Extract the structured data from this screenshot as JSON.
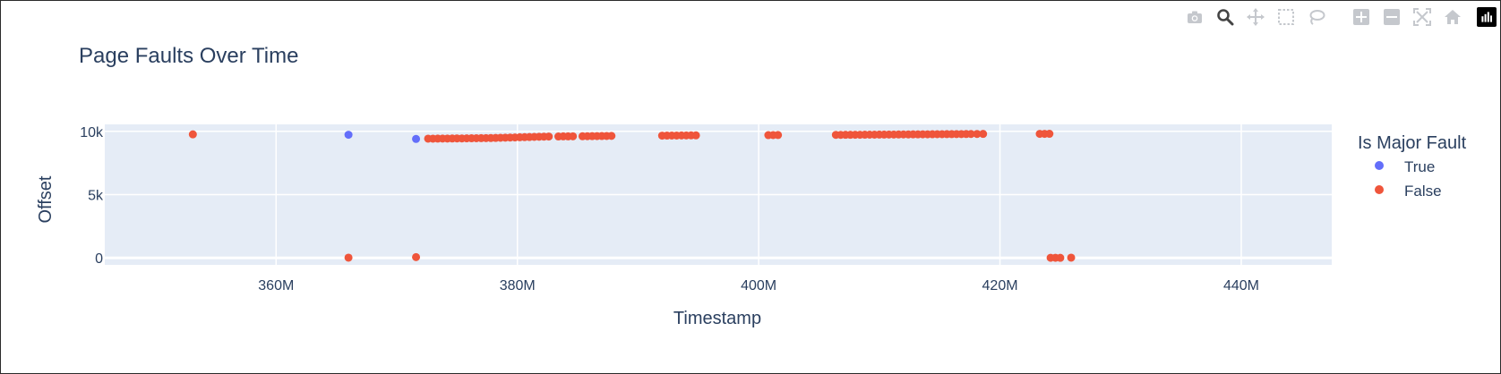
{
  "modebar": {
    "icons": [
      "camera-icon",
      "zoom-icon",
      "pan-icon",
      "box-select-icon",
      "lasso-select-icon",
      "zoom-in-icon",
      "zoom-out-icon",
      "autoscale-icon",
      "reset-axes-icon",
      "plotly-logo-icon"
    ]
  },
  "colors": {
    "true_series": "#636efa",
    "false_series": "#ef553b",
    "plot_bg": "#e5ecf6",
    "text": "#2a3f5f"
  },
  "chart_data": {
    "type": "scatter",
    "title": "Page Faults Over Time",
    "xlabel": "Timestamp",
    "ylabel": "Offset",
    "xlim": [
      345800000,
      447500000
    ],
    "ylim": [
      -550,
      10550
    ],
    "x_ticks": [
      {
        "value": 360000000,
        "label": "360M"
      },
      {
        "value": 380000000,
        "label": "380M"
      },
      {
        "value": 400000000,
        "label": "400M"
      },
      {
        "value": 420000000,
        "label": "420M"
      },
      {
        "value": 440000000,
        "label": "440M"
      }
    ],
    "y_ticks": [
      {
        "value": 0,
        "label": "0"
      },
      {
        "value": 5000,
        "label": "5k"
      },
      {
        "value": 10000,
        "label": "10k"
      }
    ],
    "grid": true,
    "legend": {
      "title": "Is Major Fault",
      "placement": "right",
      "entries": [
        "True",
        "False"
      ]
    },
    "series": [
      {
        "name": "True",
        "points": [
          [
            366000000,
            9730
          ],
          [
            371600000,
            9400
          ]
        ]
      },
      {
        "name": "False",
        "points": [
          [
            353100000,
            9760
          ],
          [
            366000000,
            20
          ],
          [
            371600000,
            60
          ],
          [
            372600000,
            9420
          ],
          [
            373000000,
            9420
          ],
          [
            373400000,
            9425
          ],
          [
            373800000,
            9430
          ],
          [
            374200000,
            9430
          ],
          [
            374600000,
            9435
          ],
          [
            375000000,
            9440
          ],
          [
            375400000,
            9440
          ],
          [
            375800000,
            9445
          ],
          [
            376200000,
            9450
          ],
          [
            376600000,
            9455
          ],
          [
            377000000,
            9460
          ],
          [
            377400000,
            9465
          ],
          [
            377800000,
            9470
          ],
          [
            378200000,
            9480
          ],
          [
            378600000,
            9490
          ],
          [
            379000000,
            9500
          ],
          [
            379400000,
            9510
          ],
          [
            379800000,
            9520
          ],
          [
            380200000,
            9530
          ],
          [
            380600000,
            9540
          ],
          [
            381000000,
            9550
          ],
          [
            381400000,
            9560
          ],
          [
            381800000,
            9570
          ],
          [
            382200000,
            9580
          ],
          [
            382600000,
            9590
          ],
          [
            383400000,
            9595
          ],
          [
            383800000,
            9600
          ],
          [
            384200000,
            9600
          ],
          [
            384600000,
            9605
          ],
          [
            385400000,
            9610
          ],
          [
            385800000,
            9615
          ],
          [
            386200000,
            9620
          ],
          [
            386600000,
            9625
          ],
          [
            387000000,
            9630
          ],
          [
            387400000,
            9635
          ],
          [
            387800000,
            9640
          ],
          [
            392000000,
            9660
          ],
          [
            392400000,
            9665
          ],
          [
            392800000,
            9670
          ],
          [
            393200000,
            9670
          ],
          [
            393600000,
            9675
          ],
          [
            394000000,
            9675
          ],
          [
            394400000,
            9680
          ],
          [
            394800000,
            9680
          ],
          [
            400800000,
            9700
          ],
          [
            401200000,
            9705
          ],
          [
            401600000,
            9710
          ],
          [
            406400000,
            9720
          ],
          [
            406800000,
            9722
          ],
          [
            407200000,
            9725
          ],
          [
            407600000,
            9727
          ],
          [
            408000000,
            9730
          ],
          [
            408400000,
            9732
          ],
          [
            408800000,
            9735
          ],
          [
            409200000,
            9737
          ],
          [
            409600000,
            9740
          ],
          [
            410000000,
            9742
          ],
          [
            410400000,
            9745
          ],
          [
            410800000,
            9747
          ],
          [
            411200000,
            9750
          ],
          [
            411600000,
            9752
          ],
          [
            412000000,
            9755
          ],
          [
            412400000,
            9757
          ],
          [
            412800000,
            9760
          ],
          [
            413200000,
            9762
          ],
          [
            413600000,
            9765
          ],
          [
            414000000,
            9767
          ],
          [
            414400000,
            9770
          ],
          [
            414800000,
            9772
          ],
          [
            415200000,
            9775
          ],
          [
            415600000,
            9777
          ],
          [
            416000000,
            9780
          ],
          [
            416400000,
            9782
          ],
          [
            416800000,
            9785
          ],
          [
            417200000,
            9787
          ],
          [
            417600000,
            9790
          ],
          [
            418100000,
            9792
          ],
          [
            418600000,
            9795
          ],
          [
            423300000,
            9800
          ],
          [
            423700000,
            9800
          ],
          [
            424100000,
            9805
          ],
          [
            424200000,
            10
          ],
          [
            424600000,
            10
          ],
          [
            425000000,
            5
          ],
          [
            425900000,
            20
          ]
        ]
      }
    ]
  }
}
